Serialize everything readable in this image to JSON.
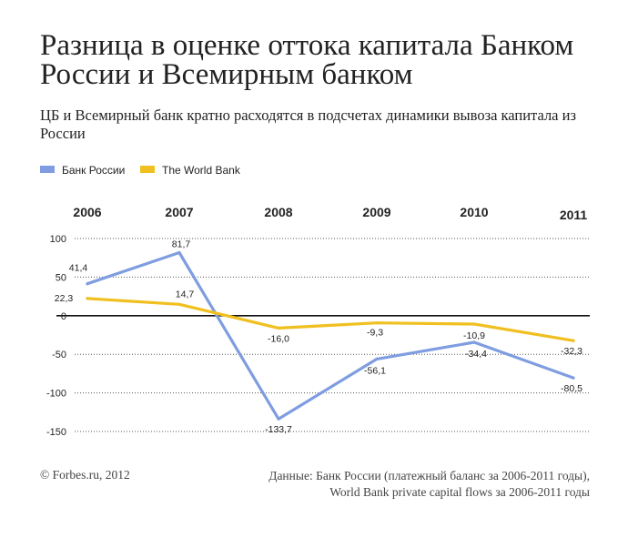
{
  "header": {
    "title": "Разница в оценке оттока капитала Банком России и Всемирным банком",
    "subtitle": "ЦБ и Всемирный банк кратно расходятся в подсчетах динамики вывоза капитала из России"
  },
  "footer": {
    "credit": "© Forbes.ru, 2012",
    "source_line1": "Данные: Банк России (платежный баланс за 2006-2011 годы),",
    "source_line2": "World Bank private capital flows за 2006-2011 годы"
  },
  "chart_data": {
    "type": "line",
    "x": [
      "2006",
      "2007",
      "2008",
      "2009",
      "2010",
      "2011"
    ],
    "ylim": [
      -150,
      100
    ],
    "yticks": [
      100,
      50,
      0,
      -50,
      -100,
      -150
    ],
    "ytick_labels": [
      "100",
      "50",
      "0",
      "-50",
      "-100",
      "-150"
    ],
    "grid": true,
    "legend_position": "top-left",
    "series": [
      {
        "name": "Банк России",
        "color": "#7f9de0",
        "values": [
          41.4,
          81.7,
          -133.7,
          -56.1,
          -34.4,
          -80.5
        ],
        "labels": [
          "41,4",
          "81,7",
          "-133,7",
          "-56,1",
          "-34,4",
          "-80,5"
        ]
      },
      {
        "name": "The World Bank",
        "color": "#f0c020",
        "values": [
          22.3,
          14.7,
          -16.0,
          -9.3,
          -10.9,
          -32.3
        ],
        "labels": [
          "22,3",
          "14,7",
          "-16,0",
          "-9,3",
          "-10,9",
          "-32,3"
        ]
      }
    ]
  }
}
